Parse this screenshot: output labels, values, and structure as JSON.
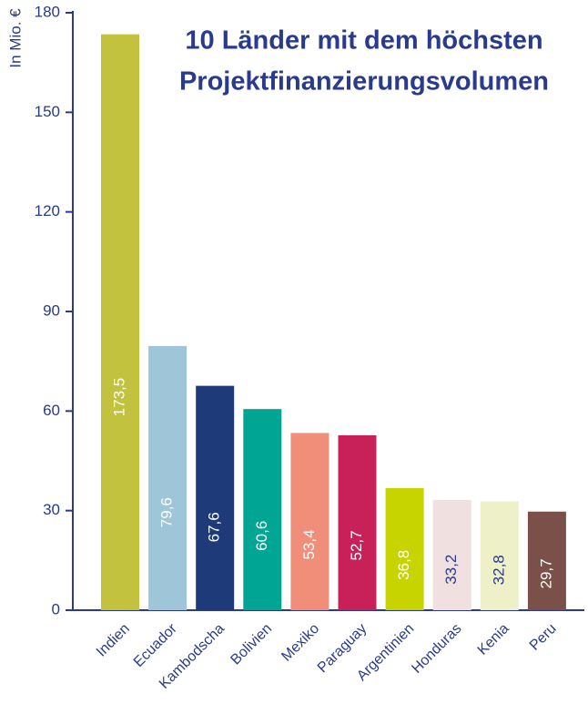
{
  "chart_data": {
    "type": "bar",
    "title": [
      "10 Länder mit dem höchsten",
      "Projektfinanzierungsvolumen"
    ],
    "y_label": "In Mio. €",
    "categories": [
      "Indien",
      "Ecuador",
      "Kambodscha",
      "Bolivien",
      "Mexiko",
      "Paraguay",
      "Argentinien",
      "Honduras",
      "Kenia",
      "Peru"
    ],
    "values": [
      173.5,
      79.6,
      67.6,
      60.6,
      53.4,
      52.7,
      36.8,
      33.2,
      32.8,
      29.7
    ],
    "value_labels": [
      "173,5",
      "79,6",
      "67,6",
      "60,6",
      "53,4",
      "52,7",
      "36,8",
      "33,2",
      "32,8",
      "29,7"
    ],
    "colors": [
      "#c3c23e",
      "#9fc5d8",
      "#1f3a78",
      "#00a693",
      "#f08e7a",
      "#c8215a",
      "#c8d400",
      "#f0e0e0",
      "#eef0c8",
      "#7a5048"
    ],
    "ylim": [
      0,
      180
    ],
    "yticks": [
      0,
      30,
      60,
      90,
      120,
      150,
      180
    ],
    "grid": false
  }
}
